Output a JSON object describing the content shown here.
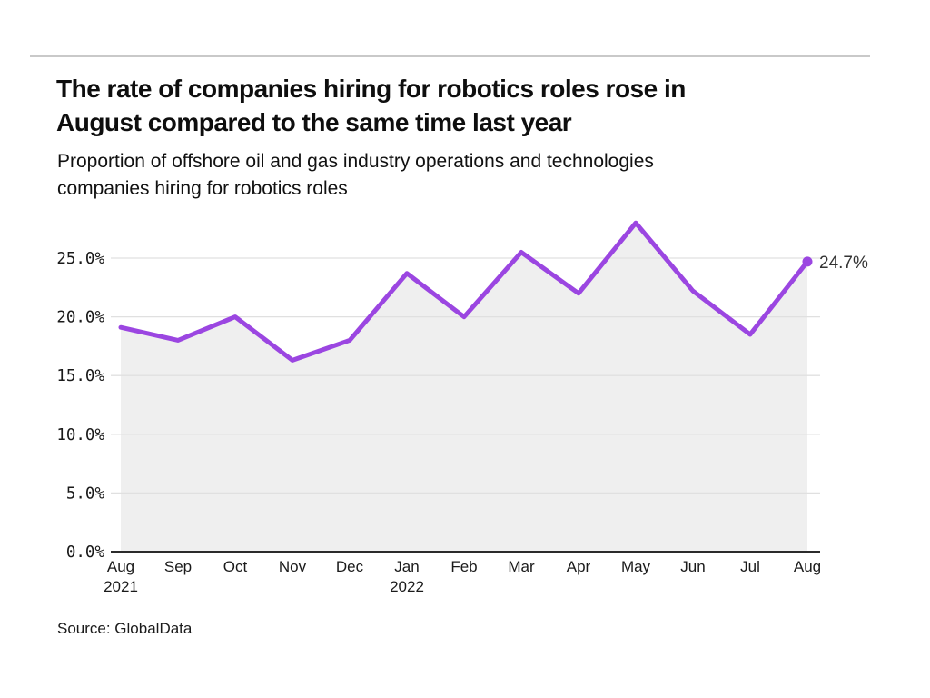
{
  "header": {
    "rule_color": "#c9c9c9"
  },
  "chart_data": {
    "type": "line",
    "title": "The rate of companies hiring for robotics roles rose in August compared to the same time last year",
    "title_lines": [
      "The rate of companies hiring for robotics roles rose in",
      "August compared to the same time last year"
    ],
    "subtitle": "Proportion of offshore oil and gas industry operations and technologies companies hiring for robotics roles",
    "subtitle_lines": [
      "Proportion of offshore oil and gas industry operations and technologies",
      "companies hiring for robotics roles"
    ],
    "categories": [
      "Aug 2021",
      "Sep",
      "Oct",
      "Nov",
      "Dec",
      "Jan 2022",
      "Feb",
      "Mar",
      "Apr",
      "May",
      "Jun",
      "Jul",
      "Aug"
    ],
    "x_tick_lines": [
      [
        "Aug",
        "2021"
      ],
      [
        "Sep"
      ],
      [
        "Oct"
      ],
      [
        "Nov"
      ],
      [
        "Dec"
      ],
      [
        "Jan",
        "2022"
      ],
      [
        "Feb"
      ],
      [
        "Mar"
      ],
      [
        "Apr"
      ],
      [
        "May"
      ],
      [
        "Jun"
      ],
      [
        "Jul"
      ],
      [
        "Aug"
      ]
    ],
    "values": [
      19.1,
      18.0,
      20.0,
      16.3,
      18.0,
      23.7,
      20.0,
      25.5,
      22.0,
      28.0,
      22.2,
      18.5,
      24.7
    ],
    "unit": "%",
    "y_ticks": [
      {
        "value": 0,
        "label": "0.0%"
      },
      {
        "value": 5,
        "label": "5.0%"
      },
      {
        "value": 10,
        "label": "10.0%"
      },
      {
        "value": 15,
        "label": "15.0%"
      },
      {
        "value": 20,
        "label": "20.0%"
      },
      {
        "value": 25,
        "label": "25.0%"
      }
    ],
    "ylim": [
      0,
      29
    ],
    "grid": true,
    "legend": "none",
    "end_label": "24.7%",
    "colors": {
      "line": "#9b46e1",
      "area": "#efefef",
      "grid": "#e0e0e0",
      "axis": "#2b2b2b",
      "tick_text": "#1a1a1a",
      "end_label_text": "#333333"
    }
  },
  "footer": {
    "source": "Source: GlobalData"
  }
}
